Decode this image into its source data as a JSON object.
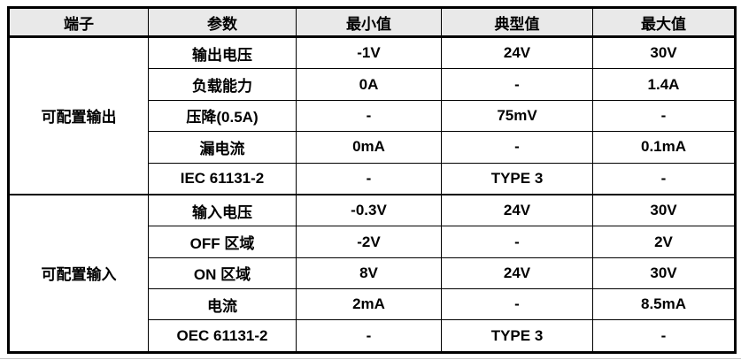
{
  "page": {
    "background": "#ffffff",
    "border_color": "#000000",
    "header_background": "#e9e9e9",
    "text_color": "#000000",
    "bottom_rule_color": "#c3c3c3"
  },
  "table": {
    "headers": [
      "端子",
      "参数",
      "最小值",
      "典型值",
      "最大值"
    ],
    "groups": [
      {
        "terminal": "可配置输出",
        "rows": [
          {
            "param": "输出电压",
            "min": "-1V",
            "typ": "24V",
            "max": "30V"
          },
          {
            "param": "负载能力",
            "min": "0A",
            "typ": "-",
            "max": "1.4A"
          },
          {
            "param": "压降(0.5A)",
            "min": "-",
            "typ": "75mV",
            "max": "-"
          },
          {
            "param": "漏电流",
            "min": "0mA",
            "typ": "-",
            "max": "0.1mA"
          },
          {
            "param": "IEC 61131-2",
            "min": "-",
            "typ": "TYPE 3",
            "max": "-"
          }
        ]
      },
      {
        "terminal": "可配置输入",
        "rows": [
          {
            "param": "输入电压",
            "min": "-0.3V",
            "typ": "24V",
            "max": "30V"
          },
          {
            "param": "OFF 区域",
            "min": "-2V",
            "typ": "-",
            "max": "2V"
          },
          {
            "param": "ON 区域",
            "min": "8V",
            "typ": "24V",
            "max": "30V"
          },
          {
            "param": "电流",
            "min": "2mA",
            "typ": "-",
            "max": "8.5mA"
          },
          {
            "param": "OEC 61131-2",
            "min": "-",
            "typ": "TYPE 3",
            "max": "-"
          }
        ]
      }
    ]
  }
}
